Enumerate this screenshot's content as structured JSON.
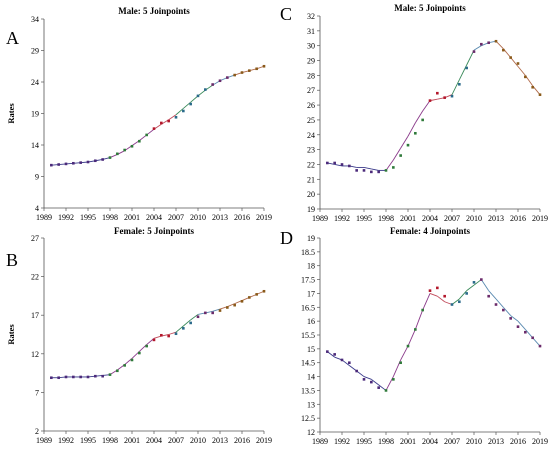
{
  "chart_data": [
    {
      "type": "line",
      "panel_letter": "A",
      "title": "Male: 5 Joinpoints",
      "xlabel": "",
      "ylabel": "Rates",
      "xlim": [
        1989,
        2019
      ],
      "ylim": [
        4,
        34
      ],
      "xticks": [
        "1989",
        "1992",
        "1995",
        "1998",
        "2001",
        "2004",
        "2007",
        "2010",
        "2013",
        "2016",
        "2019"
      ],
      "yticks": [
        "4",
        "9",
        "14",
        "19",
        "24",
        "29",
        "34"
      ],
      "x": [
        1990,
        1991,
        1992,
        1993,
        1994,
        1995,
        1996,
        1997,
        1998,
        1999,
        2000,
        2001,
        2002,
        2003,
        2004,
        2005,
        2006,
        2007,
        2008,
        2009,
        2010,
        2011,
        2012,
        2013,
        2014,
        2015,
        2016,
        2017,
        2018,
        2019
      ],
      "series": [
        {
          "role": "observed",
          "values": [
            10.8,
            10.9,
            11.0,
            11.1,
            11.2,
            11.3,
            11.5,
            11.7,
            12.0,
            12.6,
            13.2,
            13.8,
            14.6,
            15.6,
            16.6,
            17.5,
            17.8,
            18.4,
            19.4,
            20.5,
            21.8,
            22.8,
            23.6,
            24.2,
            24.7,
            25.1,
            25.5,
            25.8,
            26.1,
            26.5
          ]
        },
        {
          "role": "trend",
          "values": [
            10.8,
            10.9,
            11.0,
            11.1,
            11.2,
            11.3,
            11.5,
            11.7,
            12.0,
            12.5,
            13.1,
            13.9,
            14.7,
            15.6,
            16.5,
            17.3,
            18.0,
            18.8,
            19.8,
            20.8,
            21.8,
            22.7,
            23.5,
            24.2,
            24.7,
            25.1,
            25.5,
            25.8,
            26.1,
            26.5
          ]
        }
      ]
    },
    {
      "type": "line",
      "panel_letter": "B",
      "title": "Female: 5 Joinpoints",
      "xlabel": "",
      "ylabel": "Rates",
      "xlim": [
        1989,
        2019
      ],
      "ylim": [
        2,
        27
      ],
      "xticks": [
        "1989",
        "1992",
        "1995",
        "1998",
        "2001",
        "2004",
        "2007",
        "2010",
        "2013",
        "2016",
        "2019"
      ],
      "yticks": [
        "2",
        "7",
        "12",
        "17",
        "22",
        "27"
      ],
      "x": [
        1990,
        1991,
        1992,
        1993,
        1994,
        1995,
        1996,
        1997,
        1998,
        1999,
        2000,
        2001,
        2002,
        2003,
        2004,
        2005,
        2006,
        2007,
        2008,
        2009,
        2010,
        2011,
        2012,
        2013,
        2014,
        2015,
        2016,
        2017,
        2018,
        2019
      ],
      "series": [
        {
          "role": "observed",
          "values": [
            8.9,
            8.9,
            9.0,
            9.0,
            9.0,
            9.0,
            9.1,
            9.1,
            9.3,
            9.8,
            10.5,
            11.2,
            12.1,
            13.0,
            13.8,
            14.4,
            14.3,
            14.6,
            15.3,
            16.0,
            16.8,
            17.3,
            17.3,
            17.6,
            18.0,
            18.3,
            18.8,
            19.3,
            19.7,
            20.1
          ]
        },
        {
          "role": "trend",
          "values": [
            8.9,
            8.9,
            9.0,
            9.0,
            9.0,
            9.0,
            9.1,
            9.2,
            9.3,
            9.9,
            10.6,
            11.4,
            12.3,
            13.2,
            14.0,
            14.3,
            14.5,
            14.8,
            15.6,
            16.4,
            17.1,
            17.3,
            17.5,
            17.8,
            18.1,
            18.5,
            18.9,
            19.3,
            19.7,
            20.1
          ]
        }
      ]
    },
    {
      "type": "line",
      "panel_letter": "C",
      "title": "Male: 5 Joinpoints",
      "xlabel": "",
      "ylabel": "",
      "xlim": [
        1989,
        2019
      ],
      "ylim": [
        19,
        32
      ],
      "xticks": [
        "1989",
        "1992",
        "1995",
        "1998",
        "2001",
        "2004",
        "2007",
        "2010",
        "2013",
        "2016",
        "2019"
      ],
      "yticks": [
        "19",
        "20",
        "21",
        "22",
        "23",
        "24",
        "25",
        "26",
        "27",
        "28",
        "29",
        "30",
        "31",
        "32"
      ],
      "x": [
        1990,
        1991,
        1992,
        1993,
        1994,
        1995,
        1996,
        1997,
        1998,
        1999,
        2000,
        2001,
        2002,
        2003,
        2004,
        2005,
        2006,
        2007,
        2008,
        2009,
        2010,
        2011,
        2012,
        2013,
        2014,
        2015,
        2016,
        2017,
        2018,
        2019
      ],
      "series": [
        {
          "role": "observed",
          "values": [
            22.1,
            22.1,
            22.0,
            21.9,
            21.6,
            21.6,
            21.5,
            21.5,
            21.6,
            21.8,
            22.6,
            23.3,
            24.1,
            25.0,
            26.3,
            26.8,
            26.5,
            26.6,
            27.4,
            28.5,
            29.6,
            30.1,
            30.2,
            30.3,
            29.7,
            29.2,
            28.8,
            27.9,
            27.2,
            26.7
          ]
        },
        {
          "role": "trend",
          "values": [
            22.1,
            22.0,
            21.9,
            21.9,
            21.8,
            21.8,
            21.7,
            21.6,
            21.6,
            22.3,
            23.1,
            23.9,
            24.8,
            25.6,
            26.3,
            26.4,
            26.5,
            26.7,
            27.7,
            28.7,
            29.7,
            30.0,
            30.2,
            30.3,
            29.8,
            29.2,
            28.6,
            28.0,
            27.3,
            26.7
          ]
        }
      ]
    },
    {
      "type": "line",
      "panel_letter": "D",
      "title": "Female: 4 Joinpoints",
      "xlabel": "",
      "ylabel": "",
      "xlim": [
        1989,
        2019
      ],
      "ylim": [
        12,
        19
      ],
      "xticks": [
        "1989",
        "1992",
        "1995",
        "1998",
        "2001",
        "2004",
        "2007",
        "2010",
        "2013",
        "2016",
        "2019"
      ],
      "yticks": [
        "12",
        "12.5",
        "13",
        "13.5",
        "14",
        "14.5",
        "15",
        "15.5",
        "16",
        "16.5",
        "17",
        "17.5",
        "18",
        "18.5",
        "19"
      ],
      "x": [
        1990,
        1991,
        1992,
        1993,
        1994,
        1995,
        1996,
        1997,
        1998,
        1999,
        2000,
        2001,
        2002,
        2003,
        2004,
        2005,
        2006,
        2007,
        2008,
        2009,
        2010,
        2011,
        2012,
        2013,
        2014,
        2015,
        2016,
        2017,
        2018,
        2019
      ],
      "series": [
        {
          "role": "observed",
          "values": [
            14.9,
            14.8,
            14.6,
            14.5,
            14.2,
            13.9,
            13.8,
            13.6,
            13.5,
            13.9,
            14.5,
            15.1,
            15.7,
            16.4,
            17.1,
            17.2,
            16.9,
            16.6,
            16.7,
            17.0,
            17.4,
            17.5,
            16.9,
            16.6,
            16.4,
            16.1,
            15.8,
            15.6,
            15.4,
            15.1
          ]
        },
        {
          "role": "trend",
          "values": [
            14.9,
            14.7,
            14.6,
            14.4,
            14.2,
            14.0,
            13.9,
            13.7,
            13.5,
            14.0,
            14.6,
            15.1,
            15.7,
            16.4,
            17.0,
            16.9,
            16.7,
            16.6,
            16.8,
            17.1,
            17.3,
            17.5,
            17.1,
            16.8,
            16.5,
            16.2,
            16.0,
            15.7,
            15.4,
            15.1
          ]
        }
      ]
    }
  ],
  "style": {
    "axis_color": "#555555",
    "text_color": "#000000",
    "observed_marker_colors": [
      "#4b2a7a",
      "#2f7a3a",
      "#b3162a",
      "#2a6a8a",
      "#6a2a6a",
      "#8a5a1a"
    ],
    "trend_colors": [
      "#3a3a8a",
      "#8a3a8a",
      "#c04a5a",
      "#3a8a5a",
      "#5a8ab0",
      "#b06a4a"
    ],
    "trend_change_years": [
      [
        1998,
        2004,
        2007,
        2012,
        2015
      ],
      [
        1998,
        2004,
        2007,
        2010,
        2013
      ],
      [
        1998,
        2004,
        2007,
        2010,
        2013
      ],
      [
        1998,
        2004,
        2007,
        2011
      ]
    ]
  }
}
